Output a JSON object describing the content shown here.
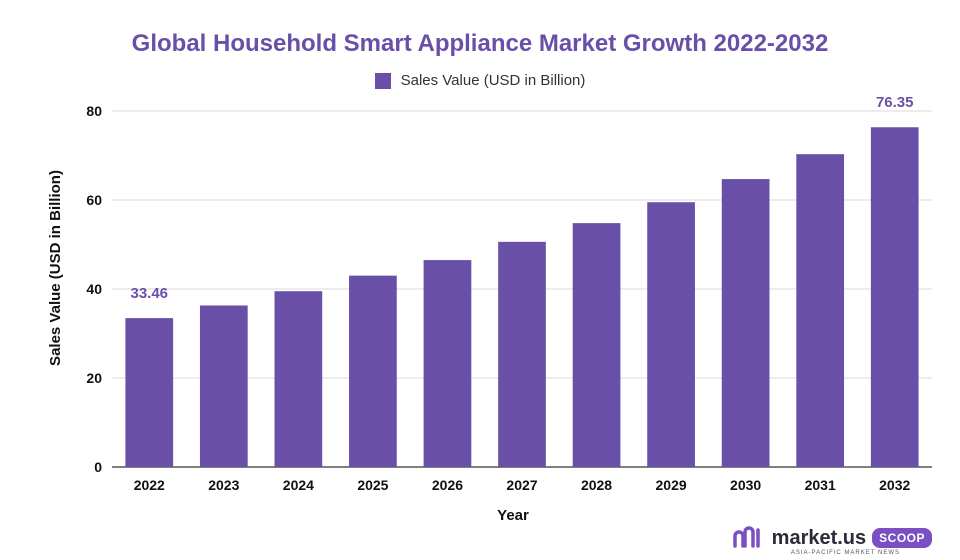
{
  "chart_data": {
    "type": "bar",
    "title": "Global Household Smart Appliance Market Growth 2022-2032",
    "xlabel": "Year",
    "ylabel": "Sales Value (USD in Billion)",
    "ylim": [
      0,
      80
    ],
    "yticks": [
      0,
      20,
      40,
      60,
      80
    ],
    "grid": true,
    "legend_position": "top-center",
    "categories": [
      "2022",
      "2023",
      "2024",
      "2025",
      "2026",
      "2027",
      "2028",
      "2029",
      "2030",
      "2031",
      "2032"
    ],
    "series": [
      {
        "name": "Sales Value (USD in Billion)",
        "values": [
          33.46,
          36.3,
          39.5,
          43.0,
          46.5,
          50.6,
          54.8,
          59.5,
          64.7,
          70.3,
          76.35
        ],
        "color": "#6a4fa8"
      }
    ],
    "data_labels": [
      {
        "category": "2022",
        "text": "33.46"
      },
      {
        "category": "2032",
        "text": "76.35"
      }
    ]
  },
  "brand": {
    "name": "market.us",
    "badge": "SCOOP",
    "tagline": "ASIA-PACIFIC MARKET NEWS",
    "mark_icon": "market-us-logo-mark",
    "badge_color": "#7b4fc4"
  },
  "colors": {
    "title": "#6a4fa8",
    "bar": "#6a4fa8",
    "grid": "#d9d9d9",
    "axis": "#333333"
  }
}
